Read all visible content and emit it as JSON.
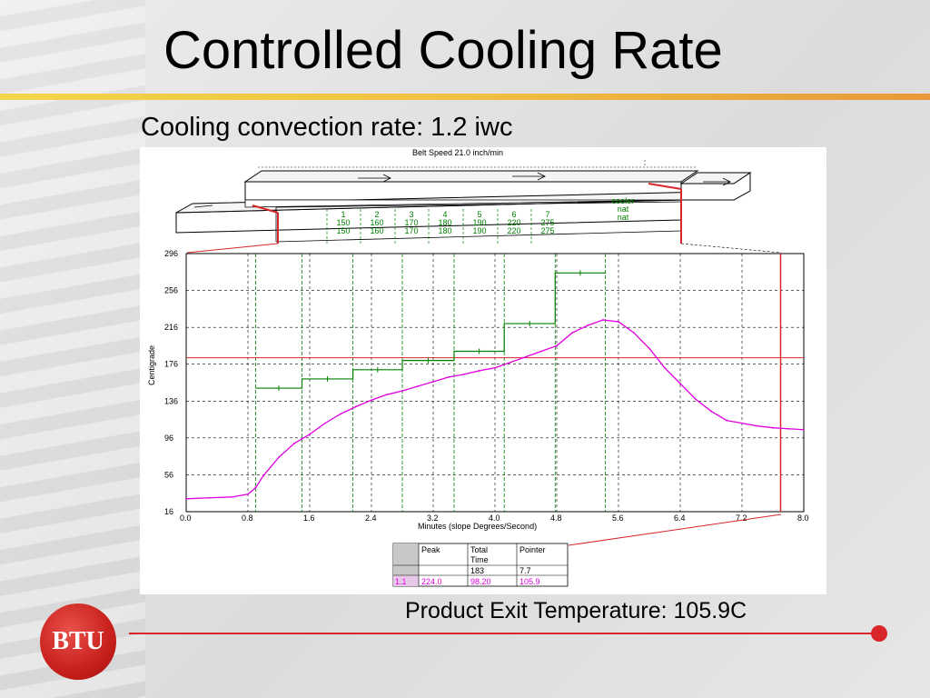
{
  "slide": {
    "title": "Controlled Cooling Rate",
    "subtitle": "Cooling convection rate:  1.2 iwc",
    "exit_label": "Product Exit Temperature:  105.9C",
    "logo_text": "BTU",
    "colors": {
      "accent_red": "#d8262a",
      "title_rule": "#f0c040"
    }
  },
  "chart_data": {
    "type": "line",
    "title": "Belt Speed 21.0 inch/min",
    "xlabel": "Minutes (slope Degrees/Second)",
    "ylabel": "Centigrade",
    "xlim": [
      0,
      8.0
    ],
    "ylim": [
      16,
      296
    ],
    "x_ticks": [
      "0.0",
      "0.8",
      "1.6",
      "2.4",
      "3.2",
      "4.0",
      "4.8",
      "5.6",
      "6.4",
      "7.2",
      "8.0"
    ],
    "y_ticks": [
      "296",
      "256",
      "216",
      "176",
      "136",
      "96",
      "56",
      "16"
    ],
    "grid": true,
    "zones": [
      {
        "label": "1",
        "top": "150",
        "bottom": "150",
        "x_start": 0.9,
        "x_end": 1.5,
        "setpoint": 150
      },
      {
        "label": "2",
        "top": "160",
        "bottom": "160",
        "x_start": 1.5,
        "x_end": 2.16,
        "setpoint": 160
      },
      {
        "label": "3",
        "top": "170",
        "bottom": "170",
        "x_start": 2.16,
        "x_end": 2.8,
        "setpoint": 170
      },
      {
        "label": "4",
        "top": "180",
        "bottom": "180",
        "x_start": 2.8,
        "x_end": 3.47,
        "setpoint": 180
      },
      {
        "label": "5",
        "top": "190",
        "bottom": "190",
        "x_start": 3.47,
        "x_end": 4.12,
        "setpoint": 190
      },
      {
        "label": "6",
        "top": "220",
        "bottom": "220",
        "x_start": 4.12,
        "x_end": 4.78,
        "setpoint": 220
      },
      {
        "label": "7",
        "top": "275",
        "bottom": "275",
        "x_start": 4.78,
        "x_end": 5.43,
        "setpoint": 275
      }
    ],
    "cooler_labels": [
      "cooler",
      "nat",
      "nat"
    ],
    "zone_boundaries": [
      0.9,
      1.5,
      2.16,
      2.8,
      3.47,
      4.12,
      4.78,
      5.43
    ],
    "reference_line_y": 183,
    "pointer_x": 7.7,
    "series": [
      {
        "color": "#e000e0",
        "x": [
          0.0,
          0.3,
          0.6,
          0.8,
          0.9,
          1.0,
          1.2,
          1.4,
          1.6,
          1.8,
          2.0,
          2.2,
          2.4,
          2.6,
          2.8,
          3.0,
          3.2,
          3.4,
          3.6,
          3.8,
          4.0,
          4.2,
          4.4,
          4.6,
          4.8,
          5.0,
          5.2,
          5.4,
          5.6,
          5.8,
          6.0,
          6.2,
          6.4,
          6.6,
          6.8,
          7.0,
          7.2,
          7.4,
          7.6,
          7.8,
          8.0
        ],
        "y": [
          30,
          31,
          32,
          35,
          42,
          55,
          75,
          90,
          100,
          112,
          122,
          130,
          137,
          143,
          147,
          152,
          157,
          162,
          165,
          169,
          172,
          178,
          184,
          190,
          196,
          210,
          218,
          224,
          222,
          210,
          193,
          172,
          155,
          138,
          125,
          115,
          112,
          109,
          107,
          106,
          105
        ]
      }
    ],
    "table": {
      "headers": [
        "",
        "Peak",
        "Total Time",
        "Pointer"
      ],
      "rows": [
        [
          "",
          "",
          "183",
          "7.7"
        ],
        [
          "1.1",
          "224.0",
          "98.20",
          "105.9"
        ]
      ]
    }
  }
}
